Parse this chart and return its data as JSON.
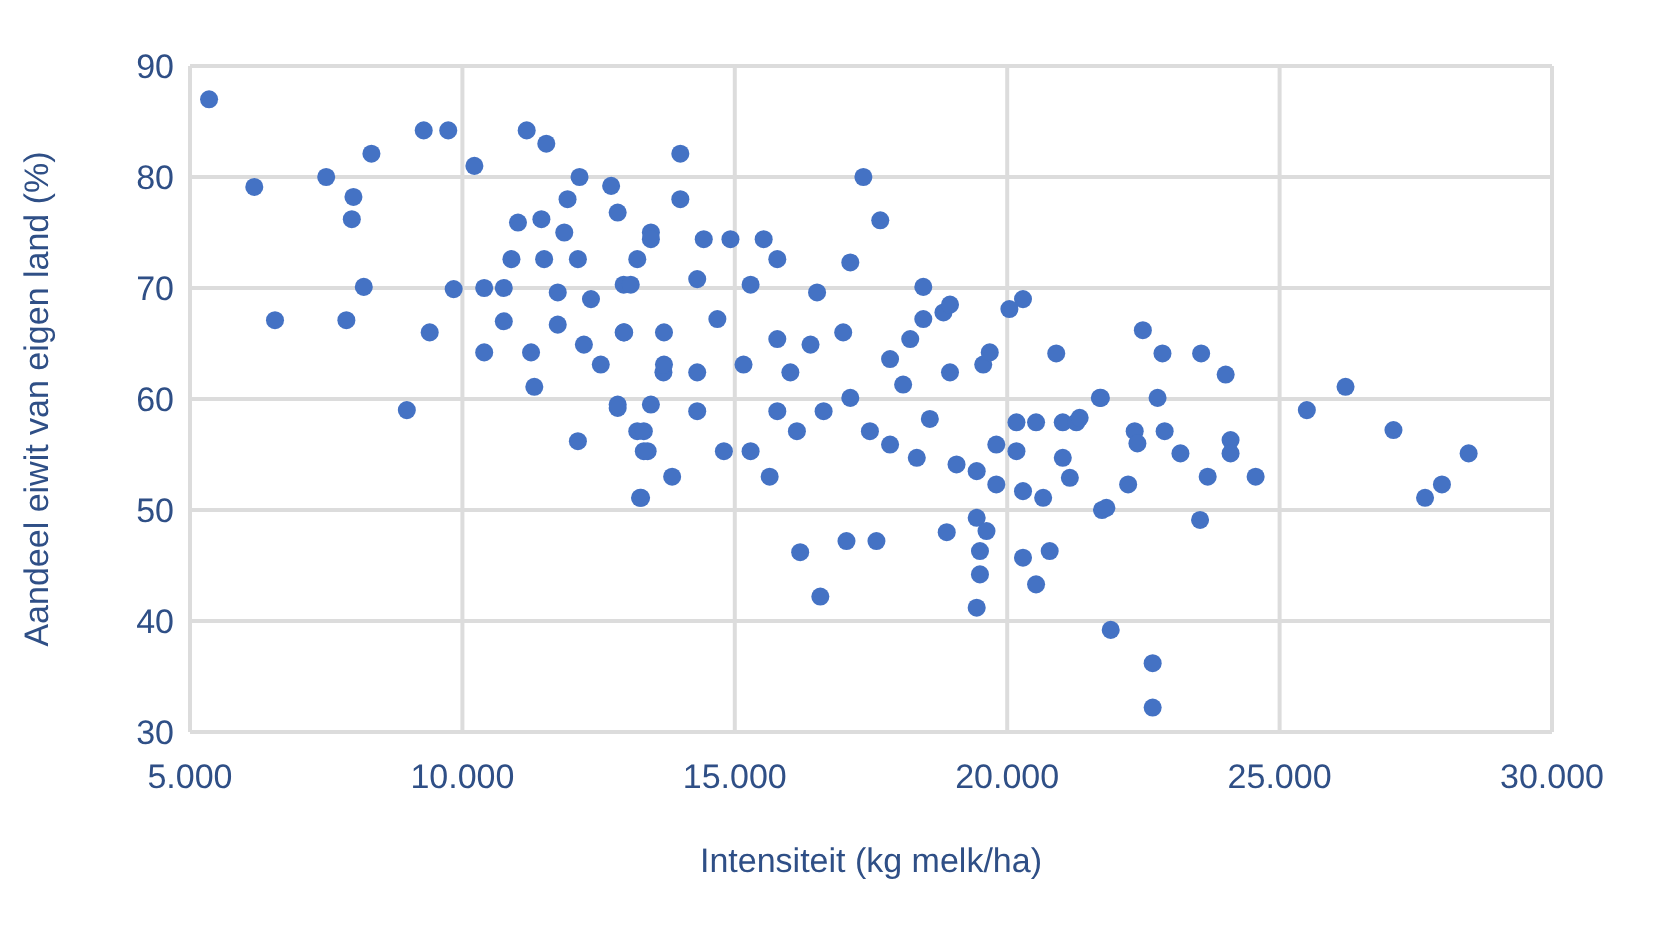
{
  "chart_data": {
    "type": "scatter",
    "xlabel": "Intensiteit (kg melk/ha)",
    "ylabel": "Aandeel eiwit van eigen land (%)",
    "xlim": [
      5000,
      30000
    ],
    "xticks": [
      {
        "value": 5000,
        "label": "5.000"
      },
      {
        "value": 10000,
        "label": "10.000"
      },
      {
        "value": 15000,
        "label": "15.000"
      },
      {
        "value": 20000,
        "label": "20.000"
      },
      {
        "value": 25000,
        "label": "25.000"
      },
      {
        "value": 30000,
        "label": "30.000"
      }
    ],
    "ylim": [
      30,
      90
    ],
    "yticks": [
      30,
      40,
      50,
      60,
      70,
      80,
      90
    ],
    "grid": true,
    "marker": "circle",
    "series": [
      {
        "color": "#4472c4",
        "x": [
          5350,
          6180,
          6560,
          7500,
          7870,
          8000,
          7970,
          8190,
          8330,
          8980,
          9290,
          9740,
          9400,
          9840,
          10220,
          11180,
          11540,
          11320,
          12120,
          12850,
          13280,
          12150,
          10400,
          10760,
          10400,
          10760,
          11260,
          11750,
          12230,
          12540,
          12960,
          11020,
          11450,
          11870,
          10900,
          11500,
          12120,
          12730,
          12850,
          11930,
          11750,
          12360,
          12960,
          13210,
          13460,
          13460,
          13400,
          13690,
          13210,
          14000,
          14000,
          17360,
          17670,
          17120,
          18460,
          20290,
          20040,
          20900,
          21700,
          21740,
          13260,
          13850,
          15640,
          16200,
          16570,
          17050,
          17600,
          18890,
          19440,
          19620,
          19500,
          19500,
          19440,
          20290,
          20530,
          20780,
          21900,
          14430,
          14920,
          15530,
          15780,
          14310,
          15290,
          16510,
          16990,
          13700,
          14680,
          15780,
          16390,
          12970,
          13090,
          13460,
          13700,
          14310,
          15160,
          16020,
          12850,
          13330,
          13330,
          14310,
          14800,
          15290,
          15780,
          16140,
          16630,
          17120,
          17480,
          17850,
          18090,
          17850,
          18220,
          18460,
          18830,
          18950,
          18580,
          18340,
          19070,
          19440,
          19800,
          20290,
          20660,
          19800,
          20170,
          20530,
          21020,
          21270,
          21020,
          21150,
          20170,
          19560,
          19680,
          18950,
          22490,
          22850,
          23560,
          24010,
          21720,
          22760,
          21330,
          22340,
          22890,
          22390,
          23180,
          24100,
          24100,
          23680,
          24560,
          22220,
          21820,
          23540,
          25500,
          26210,
          27090,
          28470,
          27980,
          27670,
          22670,
          22670
        ],
        "values": [
          87.0,
          79.1,
          67.1,
          80.0,
          67.1,
          78.2,
          76.2,
          70.1,
          82.1,
          59.0,
          84.2,
          84.2,
          66.0,
          69.9,
          81.0,
          84.2,
          83.0,
          61.1,
          56.2,
          59.2,
          51.1,
          80.0,
          70.0,
          70.0,
          64.2,
          67.0,
          64.2,
          66.7,
          64.9,
          63.1,
          66.0,
          75.9,
          76.2,
          75.0,
          72.6,
          72.6,
          72.6,
          79.2,
          76.8,
          78.0,
          69.6,
          69.0,
          70.3,
          72.6,
          75.0,
          59.5,
          55.3,
          62.4,
          57.1,
          82.1,
          78.0,
          80.0,
          76.1,
          72.3,
          70.1,
          69.0,
          68.1,
          64.1,
          60.1,
          50.0,
          51.1,
          53.0,
          53.0,
          46.2,
          42.2,
          47.2,
          47.2,
          48.0,
          49.3,
          48.1,
          46.3,
          44.2,
          41.2,
          45.7,
          43.3,
          46.3,
          39.2,
          74.4,
          74.4,
          74.4,
          72.6,
          70.8,
          70.3,
          69.6,
          66.0,
          66.0,
          67.2,
          65.4,
          64.9,
          66.0,
          70.3,
          74.4,
          63.1,
          62.4,
          63.1,
          62.4,
          59.5,
          57.1,
          55.3,
          58.9,
          55.3,
          55.3,
          58.9,
          57.1,
          58.9,
          60.1,
          57.1,
          55.9,
          61.3,
          63.6,
          65.4,
          67.2,
          67.8,
          62.4,
          58.2,
          54.7,
          54.1,
          53.5,
          52.3,
          51.7,
          51.1,
          55.9,
          57.9,
          57.9,
          57.9,
          57.9,
          54.7,
          52.9,
          55.3,
          63.1,
          64.2,
          68.5,
          66.2,
          64.1,
          64.1,
          62.2,
          60.1,
          60.1,
          58.3,
          57.1,
          57.1,
          56.0,
          55.1,
          56.3,
          55.1,
          53.0,
          53.0,
          52.3,
          50.2,
          49.1,
          59.0,
          61.1,
          57.2,
          55.1,
          52.3,
          51.1,
          36.2,
          32.2
        ]
      }
    ]
  }
}
